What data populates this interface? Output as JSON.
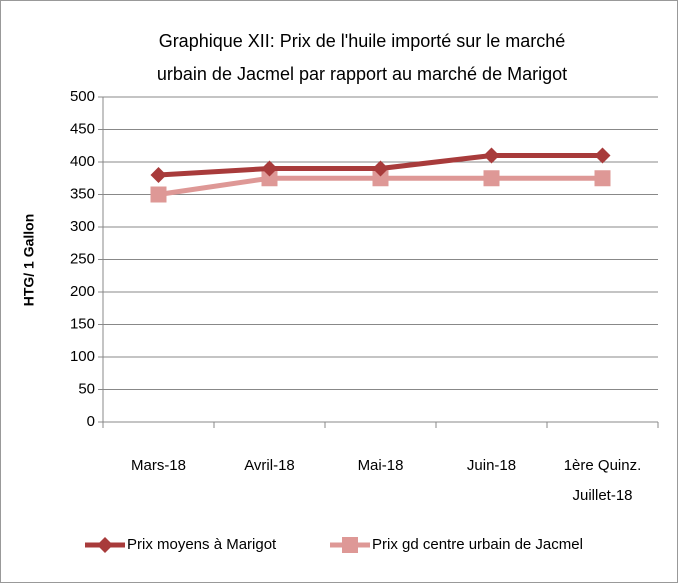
{
  "chart_data": {
    "type": "line",
    "title": [
      "Graphique XII: Prix de l'huile importé sur le marché",
      "urbain de Jacmel par rapport au marché de Marigot"
    ],
    "y_label": "HTG/ 1 Gallon",
    "categories": [
      "Mars-18",
      "Avril-18",
      "Mai-18",
      "Juin-18",
      "1ère Quinz. Juillet-18"
    ],
    "series": [
      {
        "name": "Prix moyens à Marigot",
        "color": "#a83b3b",
        "marker": "diamond",
        "values": [
          380,
          390,
          390,
          410,
          410
        ]
      },
      {
        "name": "Prix gd centre urbain de Jacmel",
        "color": "#de9896",
        "marker": "square",
        "values": [
          350,
          375,
          375,
          375,
          375
        ]
      }
    ],
    "ylim": [
      0,
      500
    ],
    "yticks": [
      0,
      50,
      100,
      150,
      200,
      250,
      300,
      350,
      400,
      450,
      500
    ],
    "grid": true,
    "legend": "bottom"
  }
}
